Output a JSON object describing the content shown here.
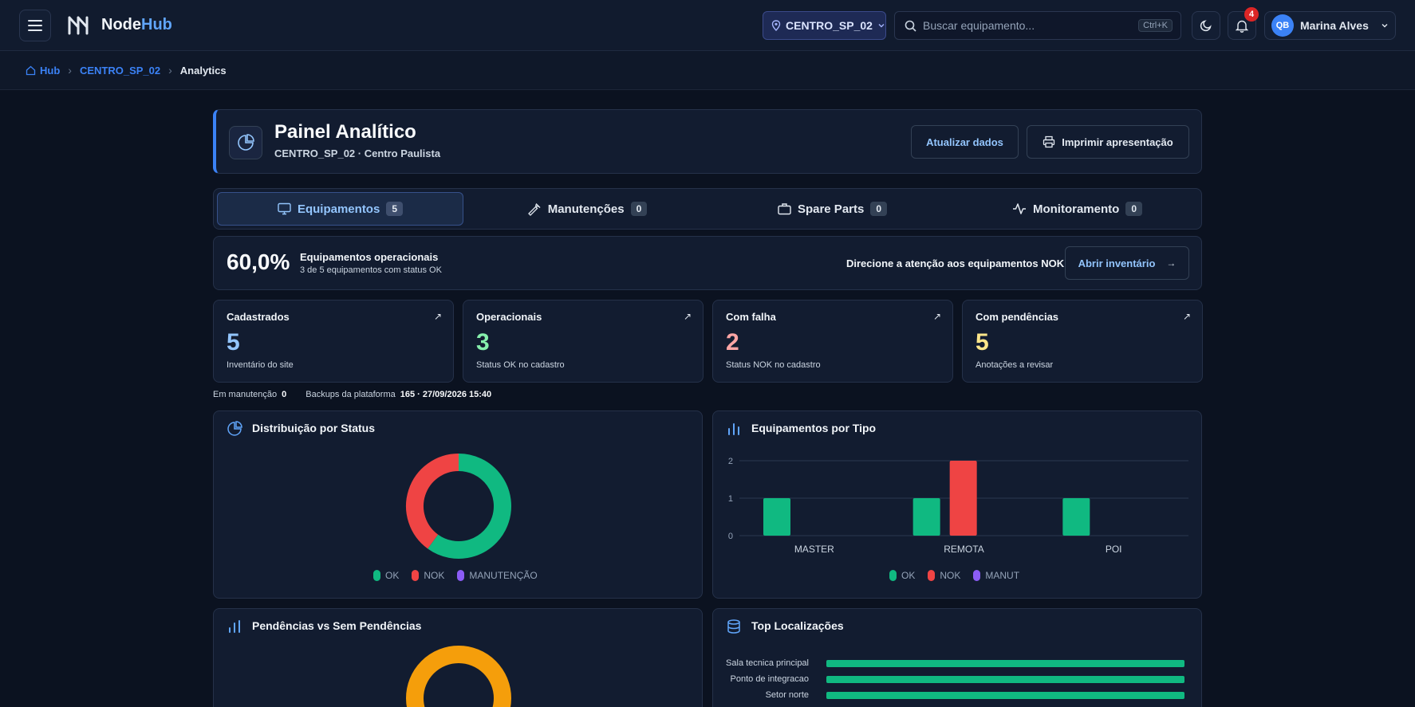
{
  "app": {
    "name_main": "Node",
    "name_accent": "Hub"
  },
  "site_selector": {
    "value": "CENTRO_SP_02"
  },
  "search": {
    "placeholder": "Buscar equipamento...",
    "shortcut": "Ctrl+K"
  },
  "notifications": {
    "count": "4"
  },
  "user": {
    "initials": "QB",
    "name": "Marina Alves"
  },
  "breadcrumb": {
    "home": "Hub",
    "site": "CENTRO_SP_02",
    "current": "Analytics"
  },
  "header": {
    "title": "Painel Analítico",
    "subtitle": "CENTRO_SP_02 · Centro Paulista",
    "refresh_label": "Atualizar dados",
    "print_label": "Imprimir apresentação"
  },
  "tabs": [
    {
      "label": "Equipamentos",
      "count": "5",
      "icon": "monitor-icon"
    },
    {
      "label": "Manutenções",
      "count": "0",
      "icon": "wrench-icon"
    },
    {
      "label": "Spare Parts",
      "count": "0",
      "icon": "briefcase-icon"
    },
    {
      "label": "Monitoramento",
      "count": "0",
      "icon": "activity-icon"
    }
  ],
  "summary": {
    "percent": "60,0%",
    "title": "Equipamentos operacionais",
    "subtitle": "3 de 5 equipamentos com status OK",
    "hint": "Direcione a atenção aos equipamentos NOK",
    "button_label": "Abrir inventário",
    "button_arrow": "→"
  },
  "stats": [
    {
      "label": "Cadastrados",
      "value": "5",
      "desc": "Inventário do site",
      "color": "#93c5fd"
    },
    {
      "label": "Operacionais",
      "value": "3",
      "desc": "Status OK no cadastro",
      "color": "#86efac"
    },
    {
      "label": "Com falha",
      "value": "2",
      "desc": "Status NOK no cadastro",
      "color": "#fca5a5"
    },
    {
      "label": "Com pendências",
      "value": "5",
      "desc": "Anotações a revisar",
      "color": "#fde68a"
    }
  ],
  "stat_arrow": "↗",
  "meta": {
    "maint_label": "Em manutenção",
    "maint_value": "0",
    "backup_label": "Backups da plataforma",
    "backup_value": "165 · 27/09/2026 15:40"
  },
  "colors": {
    "ok": "#10b981",
    "nok": "#ef4444",
    "maint": "#8b5cf6",
    "pending": "#f59e0b",
    "accent": "#3b82f6"
  },
  "chart_data": [
    {
      "type": "pie",
      "title": "Distribuição por Status",
      "labels": [
        "OK",
        "NOK",
        "MANUTENÇÃO"
      ],
      "values": [
        3,
        2,
        0
      ]
    },
    {
      "type": "bar",
      "title": "Equipamentos por Tipo",
      "categories": [
        "MASTER",
        "REMOTA",
        "POI"
      ],
      "series": [
        {
          "name": "OK",
          "values": [
            1,
            1,
            1
          ]
        },
        {
          "name": "NOK",
          "values": [
            0,
            2,
            0
          ]
        },
        {
          "name": "MANUT",
          "values": [
            0,
            0,
            0
          ]
        }
      ],
      "yticks": [
        "0",
        "1",
        "2"
      ],
      "ylim": [
        0,
        2
      ],
      "grid": true
    },
    {
      "type": "pie",
      "title": "Pendências vs Sem Pendências"
    },
    {
      "type": "bar",
      "title": "Top Localizações",
      "categories": [
        "Sala tecnica principal",
        "Ponto de integracao",
        "Setor norte"
      ],
      "values": [
        1,
        1,
        1
      ]
    }
  ]
}
